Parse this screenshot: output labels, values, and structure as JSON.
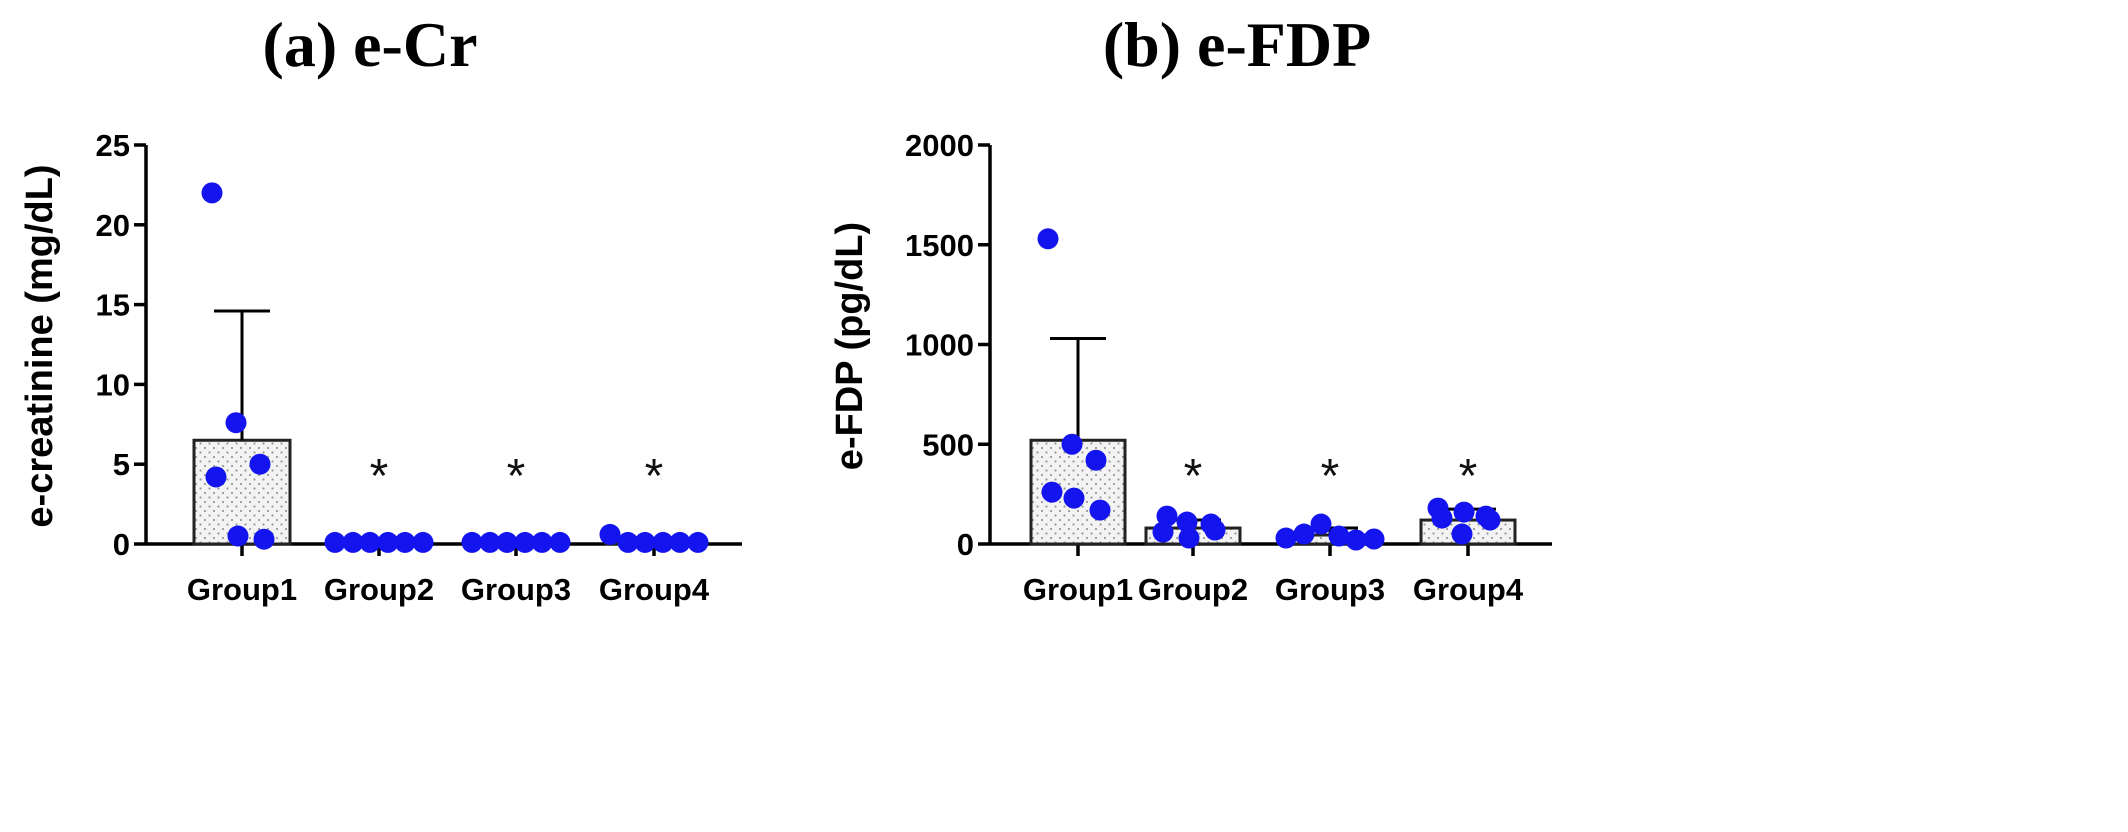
{
  "chart_data": [
    {
      "type": "bar",
      "title": "(a) e-Cr",
      "ylabel": "e-creatinine (mg/dL)",
      "xlabel": "",
      "ylim": [
        0,
        25
      ],
      "yticks": [
        0,
        5,
        10,
        15,
        20,
        25
      ],
      "categories": [
        "Group1",
        "Group2",
        "Group3",
        "Group4"
      ],
      "values": [
        6.5,
        0.12,
        0.1,
        0.12
      ],
      "error_upper": [
        14.6,
        0.12,
        0.1,
        0.2
      ],
      "points": [
        [
          22.0,
          7.6,
          5.0,
          4.2,
          0.5,
          0.3
        ],
        [
          0.1,
          0.1,
          0.1,
          0.1,
          0.1,
          0.1
        ],
        [
          0.1,
          0.1,
          0.1,
          0.1,
          0.1,
          0.1
        ],
        [
          0.6,
          0.1,
          0.1,
          0.1,
          0.1,
          0.1
        ]
      ],
      "significance": [
        "",
        "*",
        "*",
        "*"
      ],
      "grid": false,
      "colors": {
        "points": "#1414ee",
        "bar_fill": "#f3f3f3",
        "bar_dots": "#9a9a9a"
      }
    },
    {
      "type": "bar",
      "title": "(b) e-FDP",
      "ylabel": "e-FDP (pg/dL)",
      "xlabel": "",
      "ylim": [
        0,
        2000
      ],
      "yticks": [
        0,
        500,
        1000,
        1500,
        2000
      ],
      "categories": [
        "Group1",
        "Group2",
        "Group3",
        "Group4"
      ],
      "values": [
        520,
        80,
        45,
        120
      ],
      "error_upper": [
        1030,
        120,
        80,
        175
      ],
      "points": [
        [
          1530,
          500,
          420,
          260,
          230,
          170
        ],
        [
          60,
          110,
          100,
          140,
          30,
          70
        ],
        [
          30,
          50,
          100,
          40,
          20,
          25
        ],
        [
          180,
          50,
          140,
          130,
          160,
          120
        ]
      ],
      "significance": [
        "",
        "*",
        "*",
        "*"
      ],
      "grid": false,
      "colors": {
        "points": "#1414ee",
        "bar_fill": "#f3f3f3",
        "bar_dots": "#9a9a9a"
      }
    }
  ]
}
